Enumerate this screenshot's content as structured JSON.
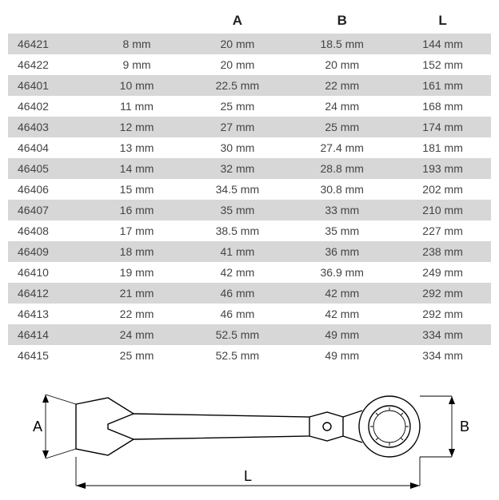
{
  "table": {
    "headers": {
      "A": "A",
      "B": "B",
      "L": "L"
    },
    "unit": "mm",
    "rows": [
      {
        "id": "46421",
        "size": "8 mm",
        "A": "20 mm",
        "B": "18.5 mm",
        "L": "144 mm"
      },
      {
        "id": "46422",
        "size": "9 mm",
        "A": "20 mm",
        "B": "20 mm",
        "L": "152 mm"
      },
      {
        "id": "46401",
        "size": "10 mm",
        "A": "22.5 mm",
        "B": "22 mm",
        "L": "161 mm"
      },
      {
        "id": "46402",
        "size": "11 mm",
        "A": "25 mm",
        "B": "24 mm",
        "L": "168 mm"
      },
      {
        "id": "46403",
        "size": "12 mm",
        "A": "27 mm",
        "B": "25 mm",
        "L": "174 mm"
      },
      {
        "id": "46404",
        "size": "13 mm",
        "A": "30 mm",
        "B": "27.4 mm",
        "L": "181 mm"
      },
      {
        "id": "46405",
        "size": "14 mm",
        "A": "32 mm",
        "B": "28.8 mm",
        "L": "193 mm"
      },
      {
        "id": "46406",
        "size": "15 mm",
        "A": "34.5 mm",
        "B": "30.8 mm",
        "L": "202 mm"
      },
      {
        "id": "46407",
        "size": "16 mm",
        "A": "35 mm",
        "B": "33 mm",
        "L": "210 mm"
      },
      {
        "id": "46408",
        "size": "17 mm",
        "A": "38.5 mm",
        "B": "35 mm",
        "L": "227 mm"
      },
      {
        "id": "46409",
        "size": "18 mm",
        "A": "41 mm",
        "B": "36 mm",
        "L": "238 mm"
      },
      {
        "id": "46410",
        "size": "19 mm",
        "A": "42 mm",
        "B": "36.9 mm",
        "L": "249 mm"
      },
      {
        "id": "46412",
        "size": "21 mm",
        "A": "46 mm",
        "B": "42 mm",
        "L": "292 mm"
      },
      {
        "id": "46413",
        "size": "22 mm",
        "A": "46 mm",
        "B": "42 mm",
        "L": "292 mm"
      },
      {
        "id": "46414",
        "size": "24 mm",
        "A": "52.5 mm",
        "B": "49 mm",
        "L": "334 mm"
      },
      {
        "id": "46415",
        "size": "25 mm",
        "A": "52.5 mm",
        "B": "49 mm",
        "L": "334 mm"
      }
    ],
    "header_fontsize": 17,
    "cell_fontsize": 14,
    "text_color": "#444444",
    "header_color": "#222222",
    "row_odd_bg": "#d7d7d7",
    "row_even_bg": "#ffffff"
  },
  "diagram": {
    "label_A": "A",
    "label_B": "B",
    "label_L": "L",
    "stroke": "#000000",
    "stroke_width": 1.4,
    "thin_stroke_width": 0.9,
    "text_color": "#000000",
    "label_fontsize": 18
  }
}
